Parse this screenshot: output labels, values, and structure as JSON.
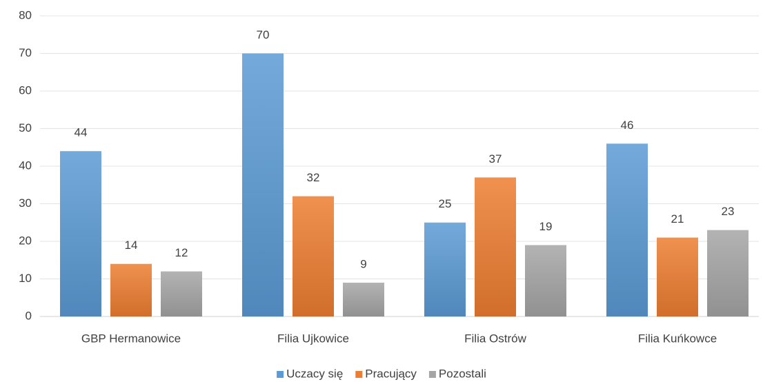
{
  "chart_data": {
    "type": "bar",
    "categories": [
      "GBP Hermanowice",
      "Filia Ujkowice",
      "Filia Ostrów",
      "Filia Kuńkowce"
    ],
    "series": [
      {
        "name": "Uczacy się",
        "color": "#5b9bd5",
        "values": [
          44,
          70,
          25,
          46
        ]
      },
      {
        "name": "Pracujący",
        "color": "#ed7d31",
        "values": [
          14,
          32,
          37,
          21
        ]
      },
      {
        "name": "Pozostali",
        "color": "#a5a5a5",
        "values": [
          12,
          9,
          19,
          23
        ]
      }
    ],
    "ylim": [
      0,
      80
    ],
    "yticks": [
      0,
      10,
      20,
      30,
      40,
      50,
      60,
      70,
      80
    ],
    "grid": true,
    "legend": "bottom"
  }
}
